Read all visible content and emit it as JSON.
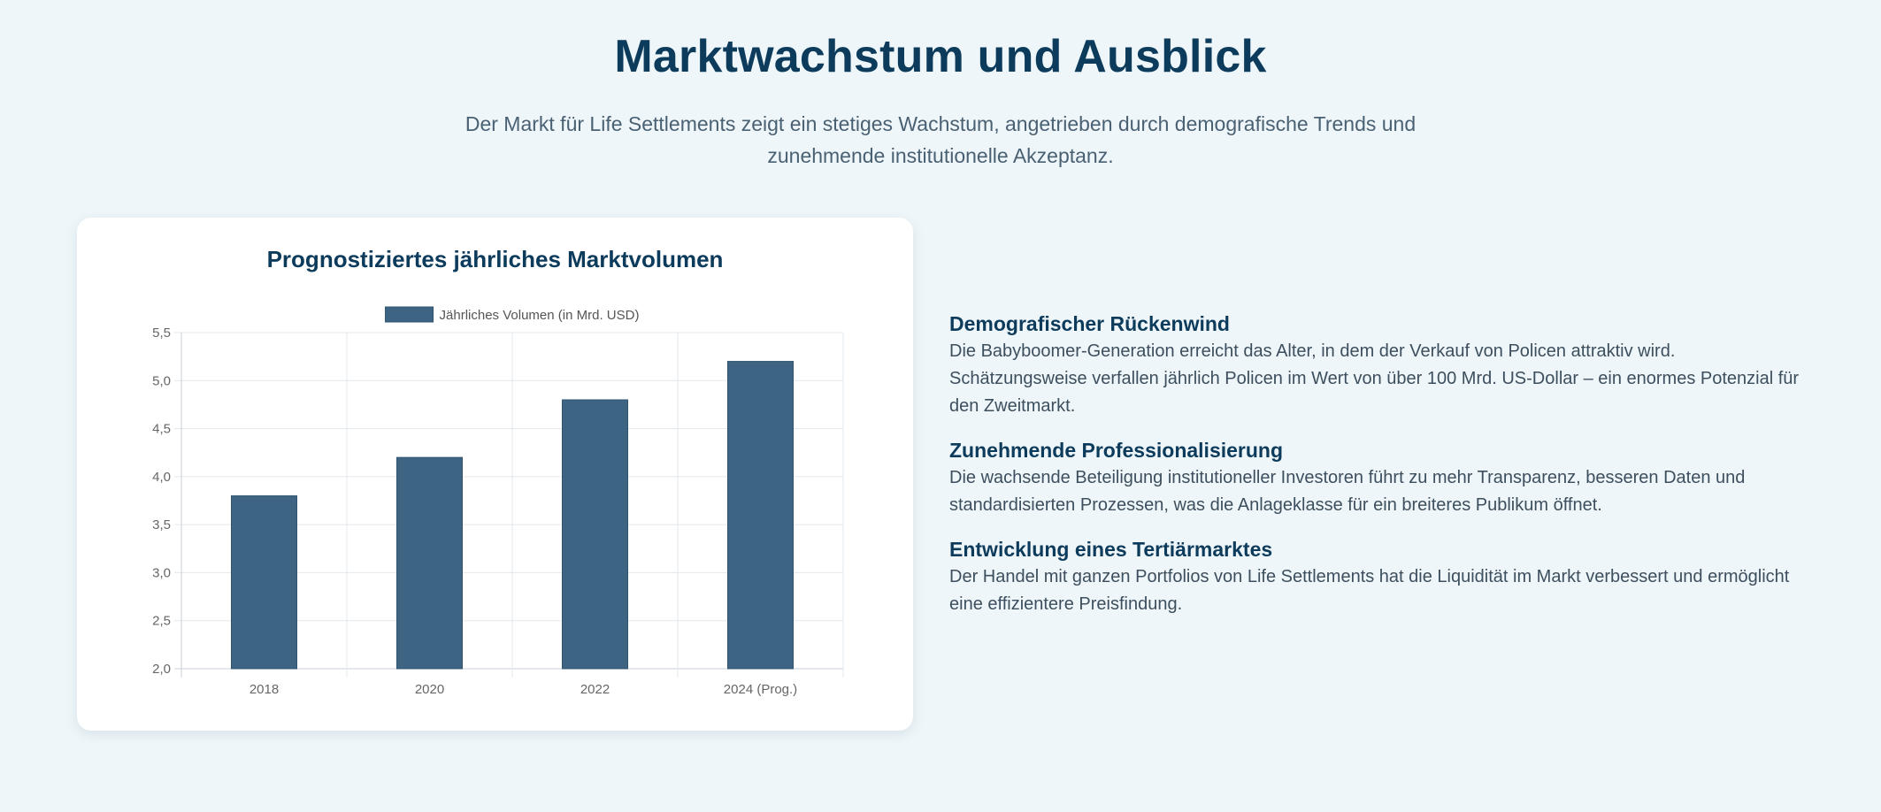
{
  "header": {
    "title": "Marktwachstum und Ausblick",
    "intro": "Der Markt für Life Settlements zeigt ein stetiges Wachstum, angetrieben durch demografische Trends und zunehmende institutionelle Akzeptanz."
  },
  "chart_data": {
    "type": "bar",
    "title": "Prognostiziertes jährliches Marktvolumen",
    "categories": [
      "2018",
      "2020",
      "2022",
      "2024 (Prog.)"
    ],
    "series": [
      {
        "name": "Jährliches Volumen (in Mrd. USD)",
        "values": [
          3.8,
          4.2,
          4.8,
          5.2
        ]
      }
    ],
    "ylim": [
      2.0,
      5.5
    ],
    "yticks": [
      "2,0",
      "2,5",
      "3,0",
      "3,5",
      "4,0",
      "4,5",
      "5,0",
      "5,5"
    ],
    "ytick_values": [
      2.0,
      2.5,
      3.0,
      3.5,
      4.0,
      4.5,
      5.0,
      5.5
    ],
    "xlabel": "",
    "ylabel": "",
    "grid": true,
    "legend_position": "top",
    "colors": {
      "bar_fill": "#3d6482",
      "bar_border": "#2f5470"
    }
  },
  "facts": [
    {
      "title": "Demografischer Rückenwind",
      "text": "Die Babyboomer-Generation erreicht das Alter, in dem der Verkauf von Policen attraktiv wird. Schätzungsweise verfallen jährlich Policen im Wert von über 100 Mrd. US-Dollar – ein enormes Potenzial für den Zweitmarkt."
    },
    {
      "title": "Zunehmende Professionalisierung",
      "text": "Die wachsende Beteiligung institutioneller Investoren führt zu mehr Transparenz, besseren Daten und standardisierten Prozessen, was die Anlageklasse für ein breiteres Publikum öffnet."
    },
    {
      "title": "Entwicklung eines Tertiärmarktes",
      "text": "Der Handel mit ganzen Portfolios von Life Settlements hat die Liquidität im Markt verbessert und ermöglicht eine effizientere Preisfindung."
    }
  ]
}
